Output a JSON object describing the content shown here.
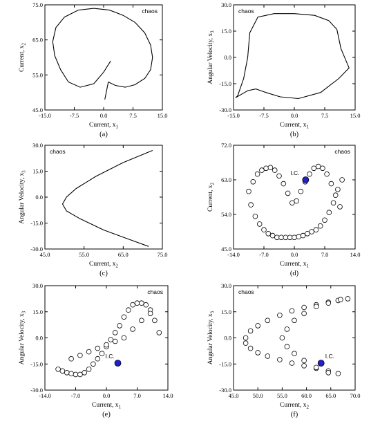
{
  "chart_data": [
    {
      "type": "line",
      "panel_label": "(a)",
      "annotation": "chaos",
      "xlabel": "Current, x",
      "xlabel_sub": "1",
      "ylabel": "Current, x",
      "ylabel_sub": "2",
      "xlim": [
        -15,
        15
      ],
      "ylim": [
        45,
        75
      ],
      "xticks": [
        "-15.0",
        "-7.5",
        "0.0",
        "7.5",
        "15.0"
      ],
      "yticks": [
        "45.0",
        "55.0",
        "65.0",
        "75.0"
      ],
      "series": [
        {
          "x": [
            1.8,
            0.0,
            -2.5,
            -6.0,
            -9.0,
            -11.0,
            -12.5,
            -13.0,
            -12.2,
            -10.0,
            -6.5,
            -2.5,
            1.5,
            5.0,
            8.0,
            10.5,
            12.0,
            12.5,
            12.0,
            10.5,
            8.0,
            5.5,
            3.0,
            1.2,
            0.3
          ],
          "y": [
            59.0,
            55.8,
            52.5,
            51.5,
            53.0,
            56.5,
            60.5,
            64.5,
            68.5,
            71.5,
            73.5,
            74.0,
            73.5,
            72.0,
            70.0,
            67.0,
            63.5,
            60.0,
            56.5,
            54.0,
            52.2,
            51.5,
            52.0,
            53.0,
            48.0
          ]
        }
      ]
    },
    {
      "type": "line",
      "panel_label": "(b)",
      "annotation": "chaos",
      "xlabel": "Current, x",
      "xlabel_sub": "1",
      "ylabel": "Angular Velocity, x",
      "ylabel_sub": "3",
      "xlim": [
        -15,
        15
      ],
      "ylim": [
        -30,
        30
      ],
      "xticks": [
        "-15.0",
        "-7.5",
        "0.0",
        "7.5",
        "15.0"
      ],
      "yticks": [
        "-30.0",
        "-15.0",
        "0.0",
        "15.0",
        "30.0"
      ],
      "series": [
        {
          "x": [
            -14.0,
            -12.5,
            -11.5,
            -11.0,
            -9.0,
            -5.0,
            0.0,
            5.0,
            8.5,
            10.5,
            11.5,
            13.5,
            11.0,
            6.5,
            1.0,
            -3.5,
            -7.0,
            -9.5,
            -11.5,
            -13.0,
            -14.5,
            -14.0
          ],
          "y": [
            -22.0,
            -12.0,
            0.0,
            14.0,
            23.0,
            25.0,
            25.0,
            24.0,
            21.0,
            16.0,
            5.0,
            -6.0,
            -12.0,
            -20.0,
            -23.5,
            -22.5,
            -20.0,
            -18.0,
            -19.0,
            -21.0,
            -23.0,
            -22.0
          ]
        }
      ]
    },
    {
      "type": "line",
      "panel_label": "(c)",
      "annotation": "chaos",
      "xlabel": "Current, x",
      "xlabel_sub": "2",
      "ylabel": "Angular Velocity, x",
      "ylabel_sub": "3",
      "xlim": [
        45,
        75
      ],
      "ylim": [
        -30,
        30
      ],
      "xticks": [
        "45.0",
        "55.0",
        "65.0",
        "75.0"
      ],
      "yticks": [
        "-30.0",
        "-15.0",
        "0.0",
        "15.0",
        "30.0"
      ],
      "series": [
        {
          "x": [
            72.5,
            65.0,
            58.0,
            53.0,
            50.5,
            49.5,
            50.5,
            54.0,
            60.0,
            66.0,
            71.5
          ],
          "y": [
            27.0,
            20.0,
            12.0,
            5.0,
            0.0,
            -4.0,
            -8.0,
            -12.5,
            -19.0,
            -24.0,
            -28.5
          ]
        }
      ]
    },
    {
      "type": "scatter",
      "panel_label": "(d)",
      "annotation": "chaos",
      "ic_label": "I.C.",
      "ic_point": [
        2.6,
        63.0
      ],
      "xlabel": "Current, x",
      "xlabel_sub": "1",
      "ylabel": "Current, x",
      "ylabel_sub": "2",
      "xlim": [
        -14,
        14
      ],
      "ylim": [
        45,
        72
      ],
      "xticks": [
        "-14.0",
        "-7.0",
        "0.0",
        "7.0",
        "14.0"
      ],
      "yticks": [
        "45.0",
        "54.0",
        "63.0",
        "72.0"
      ],
      "series": [
        {
          "x": [
            -10.5,
            -9.5,
            -8.5,
            -7.5,
            -6.5,
            -5.5,
            -4.5,
            -3.5,
            -2.5,
            -1.5,
            -0.5,
            0.5,
            1.5,
            2.5,
            3.5,
            4.5,
            5.5,
            6.5,
            7.5,
            8.5,
            9.5,
            10.5,
            -10.0,
            -9.0,
            -8.0,
            -7.0,
            -6.0,
            -5.0,
            -4.0,
            -3.0,
            -2.0,
            -1.0,
            0.0,
            1.0,
            2.0,
            3.0,
            4.0,
            5.0,
            6.0,
            7.0,
            8.0,
            9.0,
            10.0,
            11.0
          ],
          "y": [
            60.0,
            62.5,
            64.5,
            65.5,
            66.0,
            66.2,
            65.5,
            64.0,
            62.0,
            59.5,
            57.0,
            57.5,
            60.0,
            62.5,
            64.5,
            66.0,
            66.5,
            66.0,
            64.5,
            62.0,
            59.0,
            56.0,
            56.5,
            53.5,
            51.5,
            50.0,
            49.0,
            48.5,
            48.0,
            48.0,
            48.0,
            48.0,
            48.0,
            48.2,
            48.5,
            49.0,
            49.5,
            50.0,
            51.0,
            52.5,
            54.5,
            57.0,
            60.5,
            63.0
          ]
        }
      ]
    },
    {
      "type": "scatter",
      "panel_label": "(e)",
      "annotation": "chaos",
      "ic_label": "I.C.",
      "ic_point": [
        2.6,
        -14.5
      ],
      "xlabel": "Current, x",
      "xlabel_sub": "1",
      "ylabel": "Angular Velocity, x",
      "ylabel_sub": "3",
      "xlim": [
        -14,
        14
      ],
      "ylim": [
        -30,
        30
      ],
      "xticks": [
        "-14.0",
        "-7.0",
        "0.0",
        "7.0",
        "14.0"
      ],
      "yticks": [
        "-30.0",
        "-15.0",
        "0.0",
        "15.0",
        "30.0"
      ],
      "series": [
        {
          "x": [
            -11.0,
            -10.0,
            -9.0,
            -8.0,
            -7.0,
            -6.0,
            -5.0,
            -4.0,
            -3.0,
            -2.0,
            -1.0,
            0.0,
            1.0,
            2.0,
            3.0,
            4.0,
            5.0,
            6.0,
            7.0,
            8.0,
            9.0,
            10.0,
            11.0,
            12.0,
            -8.0,
            -6.0,
            -4.0,
            -2.0,
            0.0,
            2.0,
            4.0,
            6.0,
            8.0,
            10.0
          ],
          "y": [
            -18.0,
            -19.0,
            -20.0,
            -20.5,
            -21.0,
            -21.0,
            -20.0,
            -18.0,
            -15.0,
            -12.0,
            -9.0,
            -5.0,
            -1.0,
            3.0,
            7.0,
            12.0,
            16.0,
            19.0,
            20.0,
            20.0,
            19.0,
            16.0,
            10.0,
            3.0,
            -12.0,
            -10.0,
            -8.0,
            -6.0,
            -4.0,
            -2.0,
            0.0,
            5.0,
            10.0,
            14.0
          ]
        }
      ]
    },
    {
      "type": "scatter",
      "panel_label": "(f)",
      "annotation": "chaos",
      "ic_label": "I.C.",
      "ic_point": [
        63.0,
        -14.5
      ],
      "xlabel": "Current, x",
      "xlabel_sub": "2",
      "ylabel": "Angular Velocity, x",
      "ylabel_sub": "3",
      "xlim": [
        45,
        70
      ],
      "ylim": [
        -30,
        30
      ],
      "xticks": [
        "45.0",
        "50.0",
        "55.0",
        "60.0",
        "65.0",
        "70.0"
      ],
      "yticks": [
        "-30.0",
        "-15.0",
        "0.0",
        "15.0",
        "30.0"
      ],
      "series": [
        {
          "x": [
            47.5,
            48.5,
            50.0,
            52.0,
            54.5,
            57.0,
            59.5,
            62.0,
            64.5,
            66.5,
            68.5,
            47.5,
            48.5,
            50.0,
            52.0,
            54.5,
            57.0,
            59.5,
            62.0,
            64.5,
            66.5,
            55.0,
            56.0,
            57.5,
            59.5,
            62.0,
            64.5,
            67.0,
            56.0,
            57.5,
            59.5,
            62.0,
            64.5
          ],
          "y": [
            0.0,
            4.0,
            7.0,
            10.0,
            13.0,
            15.5,
            17.5,
            19.0,
            20.5,
            21.5,
            22.5,
            -3.0,
            -6.0,
            -8.5,
            -10.5,
            -12.5,
            -14.5,
            -16.0,
            -17.5,
            -19.0,
            -20.5,
            0.0,
            5.0,
            10.0,
            14.0,
            18.0,
            20.0,
            22.0,
            -5.0,
            -9.0,
            -13.0,
            -17.0,
            -20.0
          ]
        }
      ]
    }
  ]
}
